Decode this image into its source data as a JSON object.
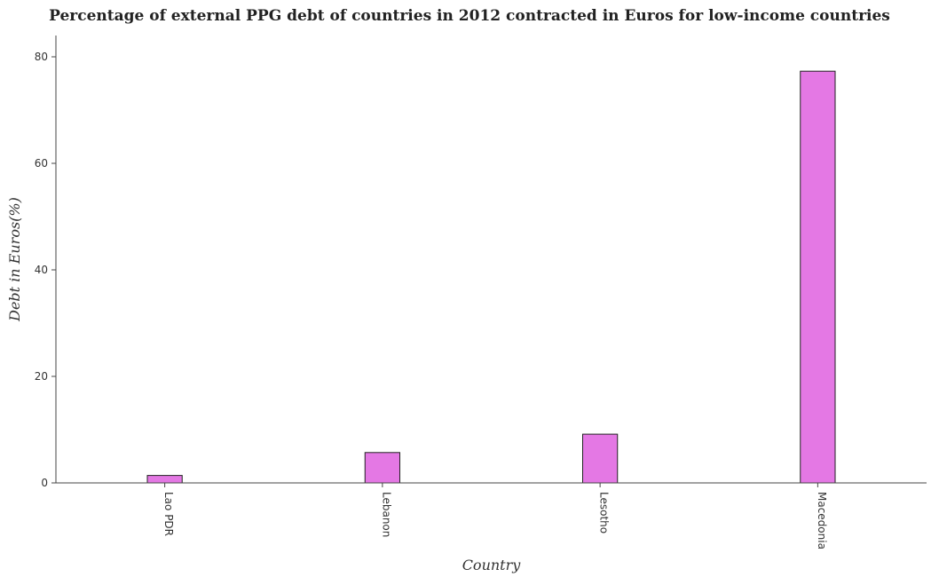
{
  "chart_data": {
    "type": "bar",
    "title": "Percentage of external PPG debt of countries in 2012 contracted in Euros for low-income countries",
    "xlabel": "Country",
    "ylabel": "Debt in Euros(%)",
    "categories": [
      "Lao PDR",
      "Lebanon",
      "Lesotho",
      "Macedonia"
    ],
    "values": [
      1.4,
      5.7,
      9.15,
      77.3
    ],
    "ylim": [
      0,
      84
    ],
    "yticks": [
      0,
      20,
      40,
      60,
      80
    ],
    "bar_color": "#e478e4",
    "bar_edge_color": "#222222",
    "grid": false
  }
}
